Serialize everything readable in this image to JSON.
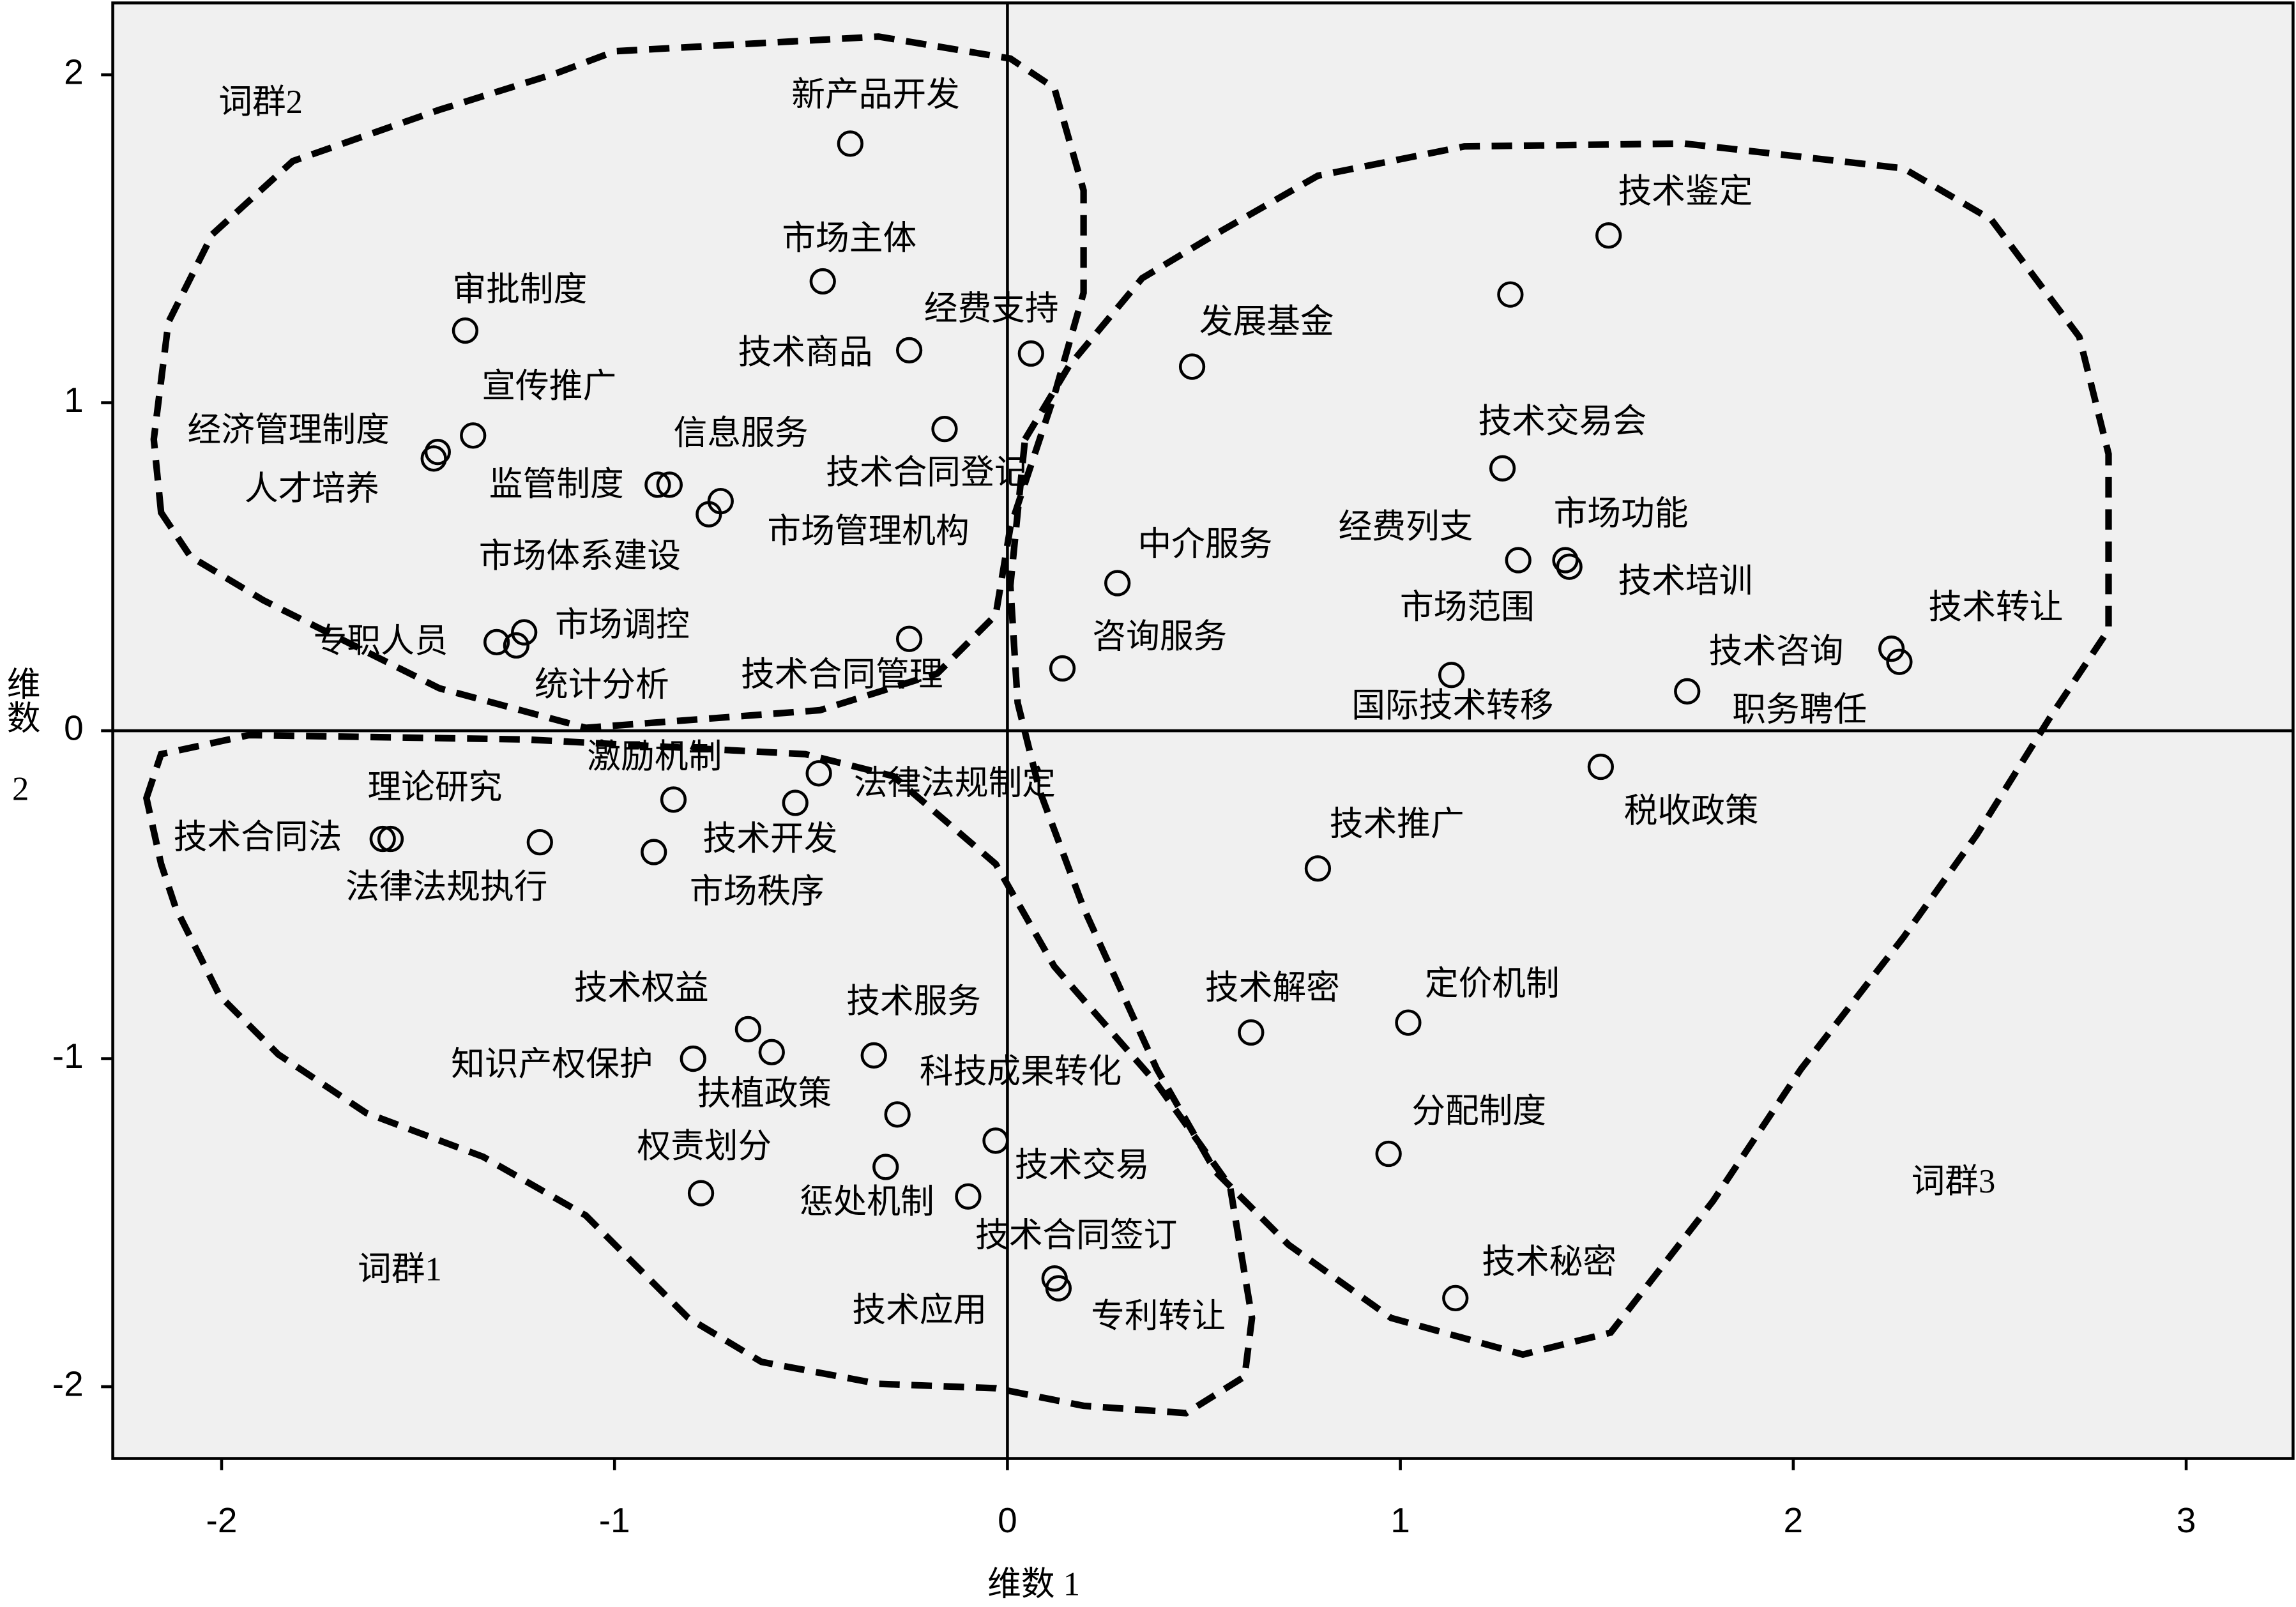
{
  "chart_data": {
    "type": "scatter",
    "x_label": "维数 1",
    "y_label": "维数 2",
    "annotations": [
      "词群2",
      "词群1",
      "词群3"
    ],
    "labels": [
      "新产品开发",
      "市场主体",
      "审批制度",
      "技术商品",
      "经费支持",
      "宣传推广",
      "经济管理制度",
      "人才培养",
      "技术合同登记",
      "监管制度",
      "信息服务",
      "市场管理机构",
      "市场体系建设",
      "市场调控",
      "专职人员",
      "统计分析",
      "技术合同管理",
      "技术鉴定",
      "技术交易会",
      "经费列支",
      "市场范围",
      "市场功能",
      "技术培训",
      "发展基金",
      "中介服务",
      "咨询服务",
      "国际技术转移",
      "职务聘任",
      "技术转让",
      "技术咨询",
      "税收政策",
      "激励机制",
      "法律法规制定",
      "技术开发",
      "市场秩序",
      "理论研究",
      "技术合同法",
      "法律法规执行",
      "技术权益",
      "科技成果转化",
      "技术服务",
      "知识产权保护",
      "扶植政策",
      "技术交易",
      "惩处机制",
      "权责划分",
      "技术合同签订",
      "技术应用",
      "专利转让",
      "技术推广",
      "技术解密",
      "定价机制",
      "分配制度",
      "技术秘密"
    ],
    "x": [
      -0.4,
      -0.47,
      -1.38,
      -0.25,
      0.06,
      -1.36,
      -1.45,
      -1.46,
      -0.16,
      -0.89,
      -0.86,
      -0.73,
      -0.76,
      -1.23,
      -1.3,
      -1.25,
      -0.25,
      1.53,
      1.28,
      1.26,
      1.3,
      1.42,
      1.43,
      0.47,
      0.28,
      0.14,
      1.13,
      1.73,
      2.25,
      2.27,
      1.51,
      -0.85,
      -0.48,
      -0.54,
      -0.9,
      -1.57,
      -1.59,
      -1.19,
      -0.66,
      -0.6,
      -0.34,
      -0.8,
      -0.28,
      -0.03,
      -0.31,
      -0.78,
      -0.1,
      0.12,
      0.13,
      0.79,
      0.62,
      1.02,
      0.97,
      1.14
    ],
    "values": [
      1.79,
      1.37,
      1.22,
      1.16,
      1.15,
      0.9,
      0.85,
      0.83,
      0.92,
      0.75,
      0.75,
      0.7,
      0.66,
      0.3,
      0.27,
      0.26,
      0.28,
      1.51,
      1.33,
      0.8,
      0.52,
      0.52,
      0.5,
      1.11,
      0.45,
      0.19,
      0.17,
      0.12,
      0.25,
      0.21,
      -0.11,
      -0.21,
      -0.13,
      -0.22,
      -0.37,
      -0.33,
      -0.33,
      -0.34,
      -0.91,
      -0.98,
      -0.99,
      -1.0,
      -1.17,
      -1.25,
      -1.33,
      -1.41,
      -1.42,
      -1.67,
      -1.7,
      -0.42,
      -0.92,
      -0.89,
      -1.29,
      -1.73
    ],
    "xlim": [
      -2.277,
      3.272
    ],
    "ylim": [
      -2.219,
      2.219
    ],
    "xticks": [
      -2,
      -1,
      0,
      1,
      2,
      3
    ],
    "yticks": [
      -2,
      -1,
      0,
      1,
      2
    ],
    "zero_lines": true,
    "color": "#000000",
    "background": "#f0f0f0"
  }
}
